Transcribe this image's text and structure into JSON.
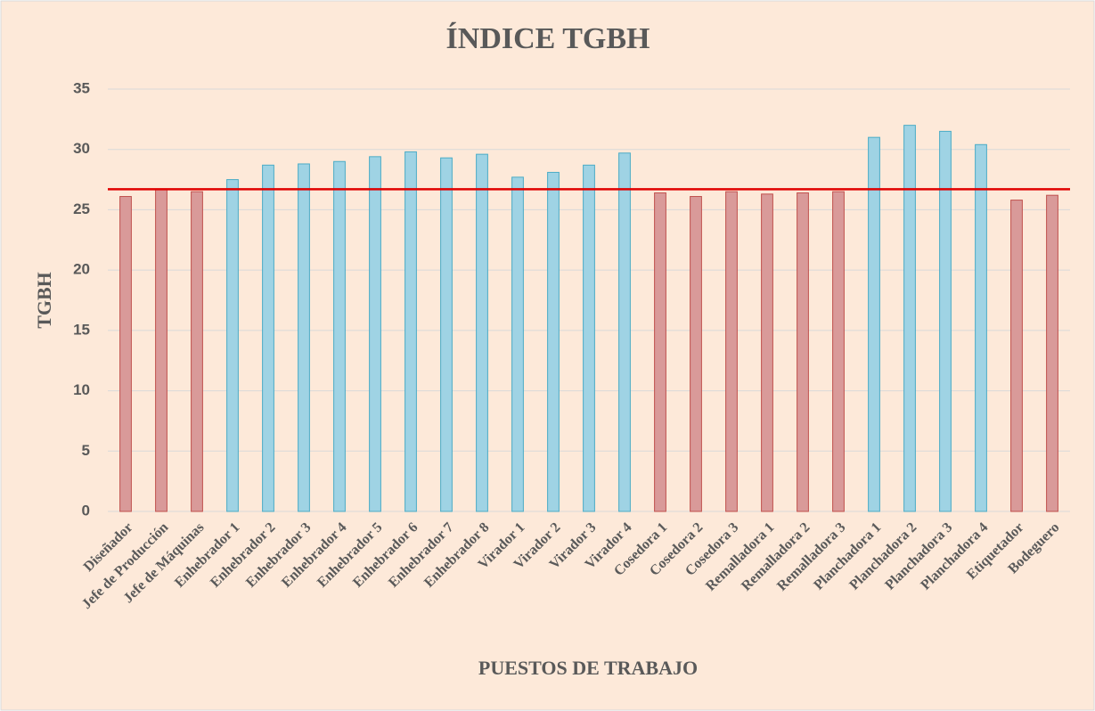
{
  "chart_data": {
    "type": "bar",
    "title": "ÍNDICE TGBH",
    "x_label": "PUESTOS DE TRABAJO",
    "y_label": "TGBH",
    "categories": [
      "Diseñador",
      "Jefe de Producción",
      "Jefe de Máquinas",
      "Enhebrador 1",
      "Enhebrador 2",
      "Enhebrador 3",
      "Enhebrador 4",
      "Enhebrador 5",
      "Enhebrador 6",
      "Enhebrador 7",
      "Enhebrador 8",
      "Virador 1",
      "Virador 2",
      "Virador 3",
      "Virador 4",
      "Cosedora 1",
      "Cosedora 2",
      "Cosedora 3",
      "Remalladora 1",
      "Remalladora 2",
      "Remalladora 3",
      "Planchadora 1",
      "Planchadora 2",
      "Planchadora 3",
      "Planchadora 4",
      "Etiquetador",
      "Bodeguero"
    ],
    "values": [
      26.1,
      26.7,
      26.5,
      27.5,
      28.7,
      28.8,
      29.0,
      29.4,
      29.8,
      29.3,
      29.6,
      27.7,
      28.1,
      28.7,
      29.7,
      26.4,
      26.1,
      26.5,
      26.3,
      26.4,
      26.5,
      31.0,
      32.0,
      31.5,
      30.4,
      25.8,
      26.2
    ],
    "colors": [
      "#d99a99",
      "#d99a99",
      "#d99a99",
      "#9fd3e4",
      "#9fd3e4",
      "#9fd3e4",
      "#9fd3e4",
      "#9fd3e4",
      "#9fd3e4",
      "#9fd3e4",
      "#9fd3e4",
      "#9fd3e4",
      "#9fd3e4",
      "#9fd3e4",
      "#9fd3e4",
      "#d99a99",
      "#d99a99",
      "#d99a99",
      "#d99a99",
      "#d99a99",
      "#d99a99",
      "#9fd3e4",
      "#9fd3e4",
      "#9fd3e4",
      "#9fd3e4",
      "#d99a99",
      "#d99a99"
    ],
    "edge_colors": [
      "#c0504d",
      "#c0504d",
      "#c0504d",
      "#4bacc6",
      "#4bacc6",
      "#4bacc6",
      "#4bacc6",
      "#4bacc6",
      "#4bacc6",
      "#4bacc6",
      "#4bacc6",
      "#4bacc6",
      "#4bacc6",
      "#4bacc6",
      "#4bacc6",
      "#c0504d",
      "#c0504d",
      "#c0504d",
      "#c0504d",
      "#c0504d",
      "#c0504d",
      "#4bacc6",
      "#4bacc6",
      "#4bacc6",
      "#4bacc6",
      "#c0504d",
      "#c0504d"
    ],
    "reference_line": 26.7,
    "reference_color": "#e00000",
    "ylim": [
      0,
      35
    ],
    "yticks": [
      0,
      5,
      10,
      15,
      20,
      25,
      30,
      35
    ],
    "grid": true
  }
}
